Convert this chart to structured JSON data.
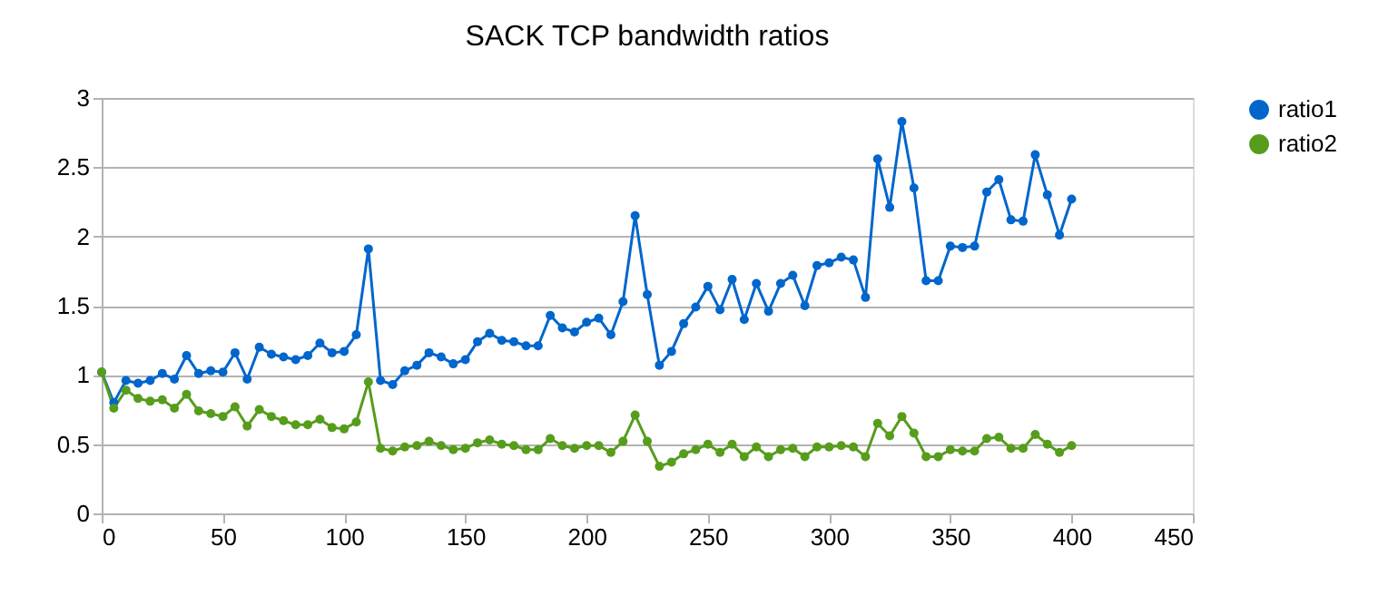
{
  "chart_data": {
    "type": "line",
    "title": "SACK TCP bandwidth ratios",
    "x": [
      0,
      5,
      10,
      15,
      20,
      25,
      30,
      35,
      40,
      45,
      50,
      55,
      60,
      65,
      70,
      75,
      80,
      85,
      90,
      95,
      100,
      105,
      110,
      115,
      120,
      125,
      130,
      135,
      140,
      145,
      150,
      155,
      160,
      165,
      170,
      175,
      180,
      185,
      190,
      195,
      200,
      205,
      210,
      215,
      220,
      225,
      230,
      235,
      240,
      245,
      250,
      255,
      260,
      265,
      270,
      275,
      280,
      285,
      290,
      295,
      300,
      305,
      310,
      315,
      320,
      325,
      330,
      335,
      340,
      345,
      350,
      355,
      360,
      365,
      370,
      375,
      380,
      385,
      390,
      395,
      400
    ],
    "series": [
      {
        "name": "ratio1",
        "color": "#0066cc",
        "values": [
          1.02,
          0.8,
          0.96,
          0.94,
          0.96,
          1.01,
          0.97,
          1.14,
          1.01,
          1.03,
          1.02,
          1.16,
          0.97,
          1.2,
          1.15,
          1.13,
          1.11,
          1.14,
          1.23,
          1.16,
          1.17,
          1.29,
          1.91,
          0.96,
          0.93,
          1.03,
          1.07,
          1.16,
          1.13,
          1.08,
          1.11,
          1.24,
          1.3,
          1.25,
          1.24,
          1.21,
          1.21,
          1.43,
          1.34,
          1.31,
          1.38,
          1.41,
          1.29,
          1.53,
          2.15,
          1.58,
          1.07,
          1.17,
          1.37,
          1.49,
          1.64,
          1.47,
          1.69,
          1.4,
          1.66,
          1.46,
          1.66,
          1.72,
          1.5,
          1.79,
          1.81,
          1.85,
          1.83,
          1.56,
          2.56,
          2.21,
          2.83,
          2.35,
          1.68,
          1.68,
          1.93,
          1.92,
          1.93,
          2.32,
          2.41,
          2.12,
          2.11,
          2.59,
          2.3,
          2.01,
          2.27
        ]
      },
      {
        "name": "ratio2",
        "color": "#579d1c",
        "values": [
          1.02,
          0.76,
          0.89,
          0.83,
          0.81,
          0.82,
          0.76,
          0.86,
          0.74,
          0.72,
          0.7,
          0.77,
          0.63,
          0.75,
          0.7,
          0.67,
          0.64,
          0.64,
          0.68,
          0.62,
          0.61,
          0.66,
          0.95,
          0.47,
          0.45,
          0.48,
          0.49,
          0.52,
          0.49,
          0.46,
          0.47,
          0.51,
          0.53,
          0.5,
          0.49,
          0.46,
          0.46,
          0.54,
          0.49,
          0.47,
          0.49,
          0.49,
          0.44,
          0.52,
          0.71,
          0.52,
          0.34,
          0.37,
          0.43,
          0.46,
          0.5,
          0.44,
          0.5,
          0.41,
          0.48,
          0.41,
          0.46,
          0.47,
          0.41,
          0.48,
          0.48,
          0.49,
          0.48,
          0.41,
          0.65,
          0.56,
          0.7,
          0.58,
          0.41,
          0.41,
          0.46,
          0.45,
          0.45,
          0.54,
          0.55,
          0.47,
          0.47,
          0.57,
          0.5,
          0.44,
          0.49
        ]
      }
    ],
    "xlim": [
      0,
      450
    ],
    "xticks": [
      0,
      50,
      100,
      150,
      200,
      250,
      300,
      350,
      400,
      450
    ],
    "ylim": [
      0,
      3
    ],
    "yticks": [
      0,
      0.5,
      1,
      1.5,
      2,
      2.5,
      3
    ],
    "grid": "y",
    "legend": "right",
    "marker": "circle",
    "line_style": "solid"
  }
}
